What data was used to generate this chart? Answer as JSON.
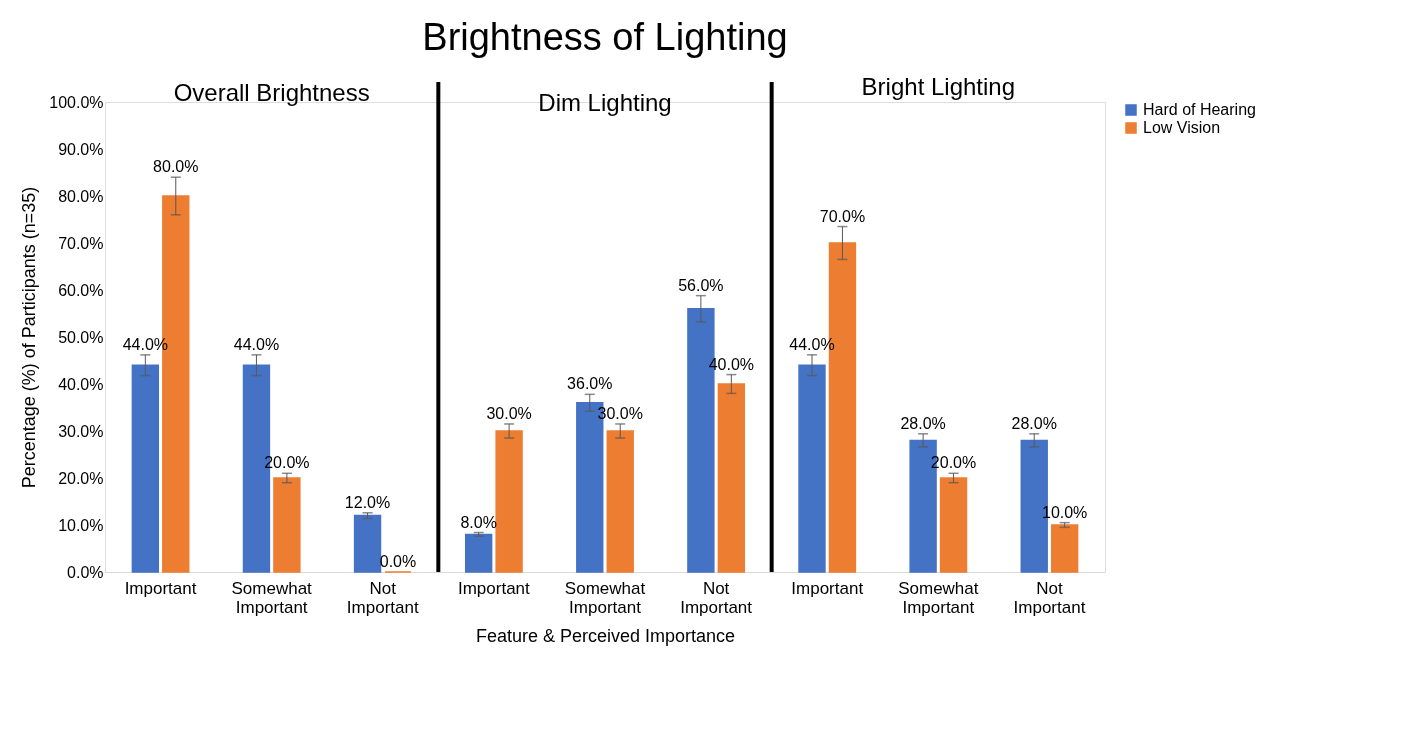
{
  "chart_data": {
    "type": "bar",
    "title": "Brightness of Lighting",
    "xlabel": "Feature & Perceived Importance",
    "ylabel": "Percentage (%) of Participants (n=35)",
    "categories": [
      "Important",
      "Somewhat Important",
      "Not Important",
      "Important",
      "Somewhat Important",
      "Not Important",
      "Important",
      "Somewhat Important",
      "Not Important"
    ],
    "series": [
      {
        "name": "Hard of Hearing",
        "color": "#4472c4",
        "values": [
          44,
          44,
          12,
          8,
          36,
          56,
          44,
          28,
          28
        ],
        "errors": [
          2.2,
          2.2,
          0.6,
          0.4,
          1.8,
          2.8,
          2.2,
          1.4,
          1.4
        ],
        "value_labels": [
          "44.0%",
          "44.0%",
          "12.0%",
          "8.0%",
          "36.0%",
          "56.0%",
          "44.0%",
          "28.0%",
          "28.0%"
        ]
      },
      {
        "name": "Low Vision",
        "color": "#ed7d31",
        "values": [
          80,
          20,
          0,
          30,
          30,
          40,
          70,
          20,
          10
        ],
        "errors": [
          4,
          1,
          null,
          1.5,
          1.5,
          2,
          3.5,
          1,
          0.5
        ],
        "value_labels": [
          "80.0%",
          "20.0%",
          "0.0%",
          "30.0%",
          "30.0%",
          "40.0%",
          "70.0%",
          "20.0%",
          "10.0%"
        ]
      }
    ],
    "ylim": [
      0,
      100
    ],
    "yticks": [
      {
        "value": 0,
        "label": "0.0%"
      },
      {
        "value": 10,
        "label": "10.0%"
      },
      {
        "value": 20,
        "label": "20.0%"
      },
      {
        "value": 30,
        "label": "30.0%"
      },
      {
        "value": 40,
        "label": "40.0%"
      },
      {
        "value": 50,
        "label": "50.0%"
      },
      {
        "value": 60,
        "label": "60.0%"
      },
      {
        "value": 70,
        "label": "70.0%"
      },
      {
        "value": 80,
        "label": "80.0%"
      },
      {
        "value": 90,
        "label": "90.0%"
      },
      {
        "value": 100,
        "label": "100.0%"
      }
    ],
    "annotations": [
      "Overall Brightness",
      "Dim Lighting",
      "Bright Lighting"
    ],
    "grid": false,
    "legend": "right"
  }
}
